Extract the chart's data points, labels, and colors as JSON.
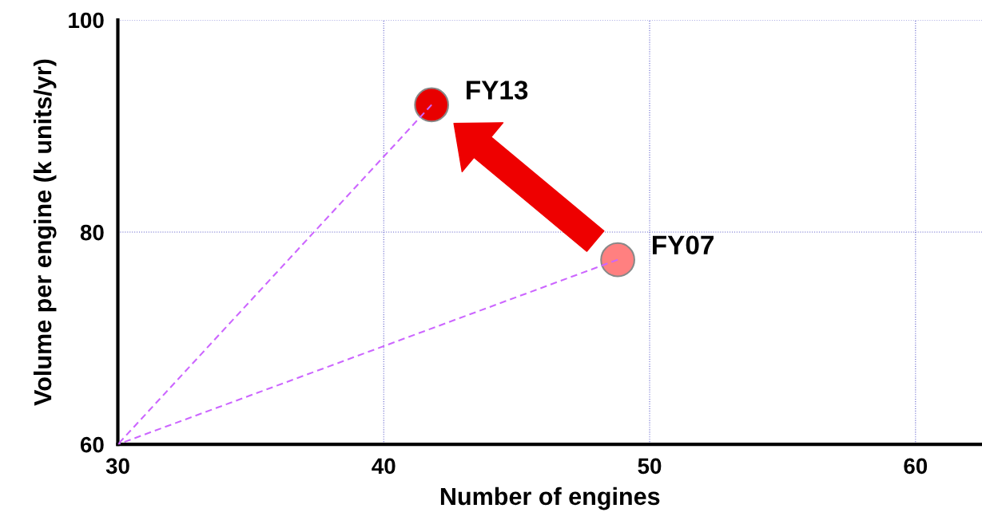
{
  "chart_data": {
    "type": "scatter",
    "xlabel": "Number of engines",
    "ylabel": "Volume per engine (k units/yr)",
    "xlim": [
      30,
      62.5
    ],
    "xticks": [
      30,
      40,
      50,
      60
    ],
    "ylim": [
      60,
      100
    ],
    "yticks": [
      60,
      80,
      100
    ],
    "grid": true,
    "legend": false,
    "marker": "circle",
    "series": [
      {
        "type": "line",
        "color": "#cc66ff",
        "line_style": "dashed",
        "marker": "none",
        "x": [
          41.8,
          30
        ],
        "values": [
          92.0,
          60
        ]
      },
      {
        "type": "line",
        "color": "#cc66ff",
        "line_style": "dashed",
        "marker": "none",
        "x": [
          48.8,
          30
        ],
        "values": [
          77.4,
          60
        ]
      },
      {
        "name": "FY13",
        "color": "#e80000",
        "x": [
          41.8
        ],
        "values": [
          92.0
        ]
      },
      {
        "name": "FY07",
        "color": "#ff8080",
        "x": [
          48.8
        ],
        "values": [
          77.4
        ]
      }
    ]
  }
}
